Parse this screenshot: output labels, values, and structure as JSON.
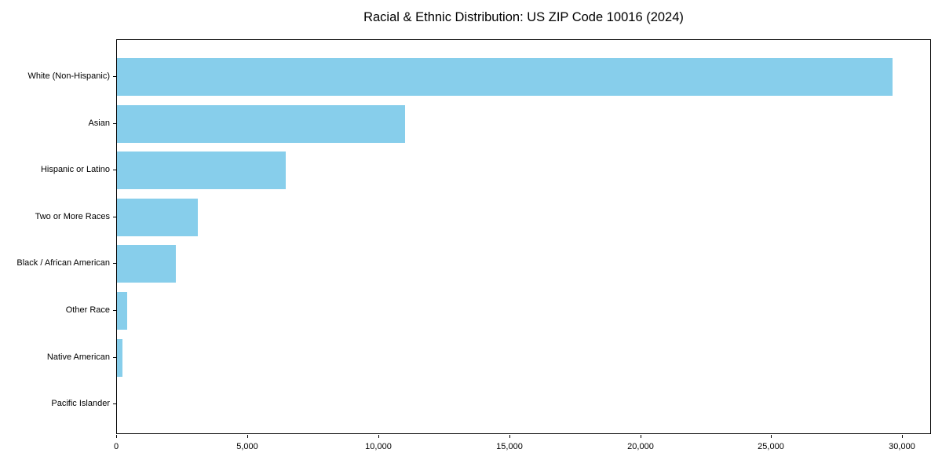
{
  "chart_data": {
    "type": "bar",
    "orientation": "horizontal",
    "title": "Racial & Ethnic Distribution: US ZIP Code 10016 (2024)",
    "categories": [
      "White (Non-Hispanic)",
      "Asian",
      "Hispanic or Latino",
      "Two or More Races",
      "Black / African American",
      "Other Race",
      "Native American",
      "Pacific Islander"
    ],
    "values": [
      29600,
      11000,
      6450,
      3100,
      2250,
      400,
      220,
      0
    ],
    "xlabel": "",
    "ylabel": "",
    "xlim": [
      0,
      31100
    ],
    "x_ticks": [
      0,
      5000,
      10000,
      15000,
      20000,
      25000,
      30000
    ],
    "x_tick_labels": [
      "0",
      "5,000",
      "10,000",
      "15,000",
      "20,000",
      "25,000",
      "30,000"
    ],
    "bar_color": "#87CEEB",
    "frame_color": "#000000",
    "grid": false,
    "legend": null
  }
}
